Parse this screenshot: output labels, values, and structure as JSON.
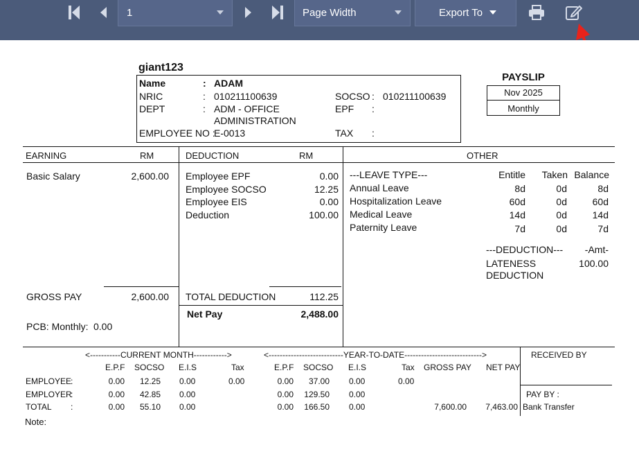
{
  "toolbar": {
    "page_value": "1",
    "zoom_value": "Page Width",
    "export_label": "Export To",
    "icons": [
      "first-page-icon",
      "prev-page-icon",
      "next-page-icon",
      "last-page-icon",
      "print-icon",
      "edit-icon"
    ]
  },
  "employee": {
    "company": "giant123",
    "name_label": "Name",
    "name_value": "ADAM",
    "nric_label": "NRIC",
    "nric_value": "010211100639",
    "dept_label": "DEPT",
    "dept_value1": "ADM  - OFFICE",
    "dept_value2": "ADMINISTRATION",
    "empno_label": "EMPLOYEE NO :",
    "empno_value": "E-0013",
    "socso_label": "SOCSO",
    "socso_value": "010211100639",
    "epf_label": "EPF",
    "tax_label": "TAX",
    "colon": ":"
  },
  "payslip": {
    "title": "PAYSLIP",
    "period": "Nov 2025",
    "frequency": "Monthly"
  },
  "earning": {
    "header": "EARNING",
    "rm": "RM",
    "items": [
      {
        "label": "Basic Salary",
        "amount": "2,600.00"
      }
    ],
    "gross_label": "GROSS PAY",
    "gross_value": "2,600.00",
    "pcb_label": "PCB: Monthly:",
    "pcb_value": "0.00"
  },
  "deduction": {
    "header": "DEDUCTION",
    "rm": "RM",
    "items": [
      {
        "label": "Employee EPF",
        "amount": "0.00"
      },
      {
        "label": "Employee SOCSO",
        "amount": "12.25"
      },
      {
        "label": "Employee EIS",
        "amount": "0.00"
      },
      {
        "label": "Deduction",
        "amount": "100.00"
      }
    ],
    "total_label": "TOTAL DEDUCTION",
    "total_value": "112.25",
    "net_label": "Net Pay",
    "net_value": "2,488.00"
  },
  "other": {
    "header": "OTHER",
    "leave_header": "---LEAVE TYPE---",
    "col_entitle": "Entitle",
    "col_taken": "Taken",
    "col_balance": "Balance",
    "leaves": [
      {
        "type": "Annual Leave",
        "entitle": "8d",
        "taken": "0d",
        "balance": "8d"
      },
      {
        "type": "Hospitalization Leave",
        "entitle": "60d",
        "taken": "0d",
        "balance": "60d"
      },
      {
        "type": "Medical Leave",
        "entitle": "14d",
        "taken": "0d",
        "balance": "14d"
      },
      {
        "type": "Paternity Leave",
        "entitle": "7d",
        "taken": "0d",
        "balance": "7d"
      }
    ],
    "ded_header": "---DEDUCTION---",
    "amt_header": "-Amt-",
    "ded_item1": "LATENESS",
    "ded_item2": "DEDUCTION",
    "ded_amount": "100.00"
  },
  "summary": {
    "current_month": "<-----------CURRENT MONTH------------>",
    "ytd": "<---------------------------YEAR-TO-DATE---------------------------->",
    "received_by": "RECEIVED BY",
    "h_epf": "E.P.F",
    "h_socso": "SOCSO",
    "h_eis": "E.I.S",
    "h_tax": "Tax",
    "h_gross": "GROSS PAY",
    "h_net": "NET PAY",
    "rows": [
      {
        "label": "EMPLOYEE",
        "colon": ":",
        "cm_epf": "0.00",
        "cm_socso": "12.25",
        "cm_eis": "0.00",
        "cm_tax": "0.00",
        "y_epf": "0.00",
        "y_socso": "37.00",
        "y_eis": "0.00",
        "y_tax": "0.00",
        "y_gross": "",
        "y_net": ""
      },
      {
        "label": "EMPLOYER",
        "colon": ":",
        "cm_epf": "0.00",
        "cm_socso": "42.85",
        "cm_eis": "0.00",
        "cm_tax": "",
        "y_epf": "0.00",
        "y_socso": "129.50",
        "y_eis": "0.00",
        "y_tax": "",
        "y_gross": "",
        "y_net": ""
      },
      {
        "label": "TOTAL",
        "colon": ":",
        "cm_epf": "0.00",
        "cm_socso": "55.10",
        "cm_eis": "0.00",
        "cm_tax": "",
        "y_epf": "0.00",
        "y_socso": "166.50",
        "y_eis": "0.00",
        "y_tax": "",
        "y_gross": "7,600.00",
        "y_net": "7,463.00"
      }
    ],
    "pay_by_label": "PAY BY :",
    "pay_by_value": "Bank Transfer",
    "note_label": "Note:"
  },
  "colors": {
    "toolbar": "#4b5b7a",
    "annotation_arrow": "#e8231b"
  }
}
